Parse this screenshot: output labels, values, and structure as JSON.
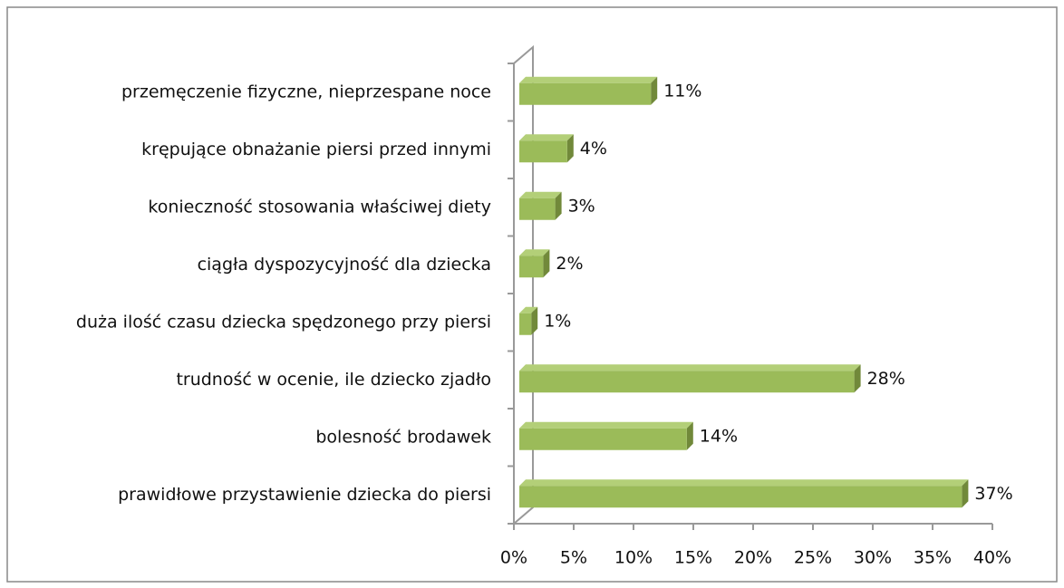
{
  "chart_data": {
    "type": "bar3d_horizontal",
    "categories": [
      "przemęczenie fizyczne, nieprzespane noce",
      "krępujące obnażanie piersi przed innymi",
      "konieczność stosowania właściwej diety",
      "ciągła dyspozycyjność dla dziecka",
      "duża ilość czasu dziecka spędzonego przy piersi",
      "trudność w ocenie, ile dziecko zjadło",
      "bolesność brodawek",
      "prawidłowe przystawienie dziecka do piersi"
    ],
    "values": [
      11,
      4,
      3,
      2,
      1,
      28,
      14,
      37
    ],
    "value_labels": [
      "11%",
      "4%",
      "3%",
      "2%",
      "1%",
      "28%",
      "14%",
      "37%"
    ],
    "color": "#9bbb59",
    "xlim": [
      0,
      40
    ],
    "xticks": [
      {
        "value": 0,
        "label": "0%"
      },
      {
        "value": 5,
        "label": "5%"
      },
      {
        "value": 10,
        "label": "10%"
      },
      {
        "value": 15,
        "label": "15%"
      },
      {
        "value": 20,
        "label": "20%"
      },
      {
        "value": 25,
        "label": "25%"
      },
      {
        "value": 30,
        "label": "30%"
      },
      {
        "value": 35,
        "label": "35%"
      },
      {
        "value": 40,
        "label": "40%"
      }
    ]
  }
}
